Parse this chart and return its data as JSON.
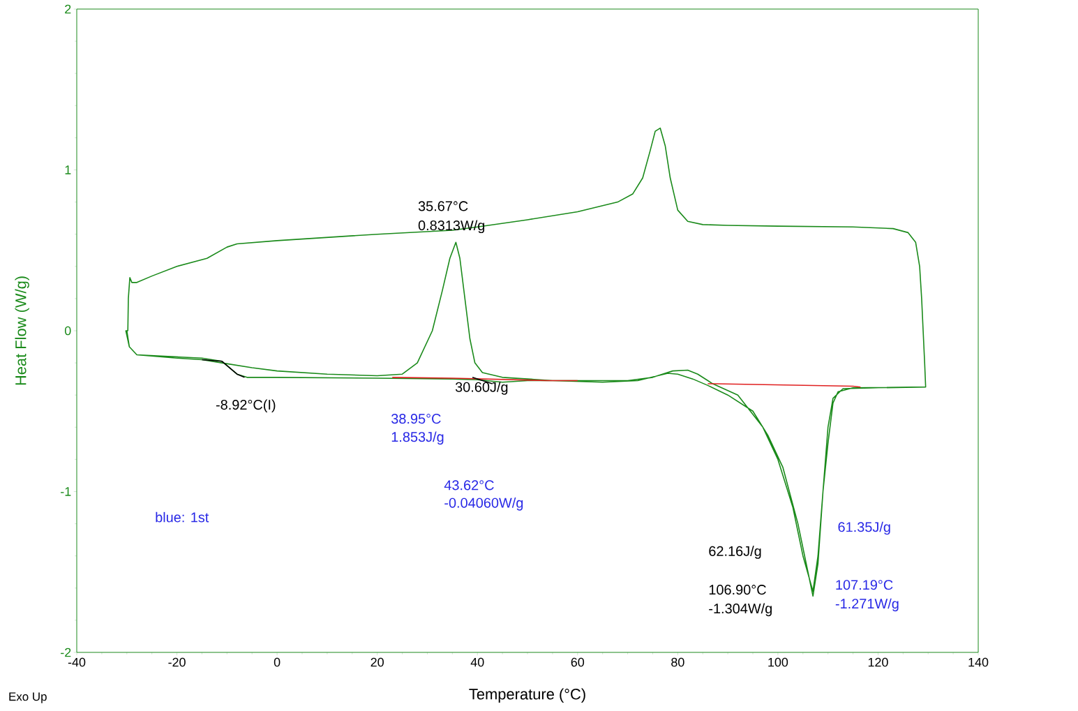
{
  "chart_data": {
    "type": "line",
    "xlabel": "Temperature (°C)",
    "ylabel": "Heat Flow (W/g)",
    "xlim": [
      -40,
      140
    ],
    "ylim": [
      -2,
      2
    ],
    "xticks": [
      -40,
      -20,
      0,
      20,
      40,
      60,
      80,
      100,
      120,
      140
    ],
    "yticks": [
      -2,
      -1,
      0,
      1,
      2
    ],
    "grid": false,
    "marker": "none",
    "line_style": "solid",
    "series": [
      {
        "color": "#1a8a1a",
        "x": [
          -30,
          -29.5,
          -28,
          -15,
          -11,
          -8,
          -6,
          0,
          20,
          35,
          40,
          45,
          50,
          70,
          75,
          79,
          82,
          84,
          87,
          92,
          97,
          100,
          103,
          105,
          107,
          108,
          109,
          110,
          111,
          112,
          115,
          129.5,
          129.5,
          129.3,
          129,
          128.7,
          128.3,
          127.5,
          126,
          123,
          115,
          100,
          90,
          85,
          82,
          80,
          78.5,
          77.5,
          76.5,
          75.5,
          74.5,
          73,
          71,
          68,
          60,
          50,
          40,
          35,
          20,
          0,
          -8,
          -10,
          -14,
          -20,
          -25,
          -28,
          -29,
          -29.4,
          -29.7,
          -29.8,
          -30.2,
          -29.5,
          -28,
          -20,
          -15,
          -11,
          -5,
          0,
          10,
          20,
          25,
          28,
          31,
          33,
          34.5,
          35.7,
          36.5,
          37.5,
          38.5,
          39.5,
          41,
          45,
          55,
          65,
          72,
          76,
          78,
          80,
          83,
          86,
          90,
          95,
          98,
          101,
          104,
          106,
          107,
          108,
          109,
          110,
          111,
          113,
          120,
          129.5
        ],
        "values": [
          0.0,
          -0.1,
          -0.15,
          -0.17,
          -0.19,
          -0.27,
          -0.29,
          -0.29,
          -0.295,
          -0.3,
          -0.305,
          -0.32,
          -0.31,
          -0.31,
          -0.29,
          -0.25,
          -0.245,
          -0.27,
          -0.33,
          -0.4,
          -0.6,
          -0.8,
          -1.1,
          -1.4,
          -1.62,
          -1.4,
          -1.0,
          -0.7,
          -0.45,
          -0.38,
          -0.355,
          -0.35,
          -0.35,
          -0.2,
          0,
          0.2,
          0.4,
          0.55,
          0.61,
          0.635,
          0.645,
          0.65,
          0.655,
          0.66,
          0.68,
          0.75,
          0.95,
          1.15,
          1.26,
          1.24,
          1.12,
          0.95,
          0.85,
          0.8,
          0.74,
          0.69,
          0.645,
          0.625,
          0.6,
          0.56,
          0.54,
          0.52,
          0.45,
          0.4,
          0.34,
          0.3,
          0.3,
          0.33,
          0.2,
          0.0,
          0.0,
          -0.1,
          -0.15,
          -0.17,
          -0.18,
          -0.2,
          -0.23,
          -0.25,
          -0.27,
          -0.28,
          -0.27,
          -0.2,
          0.0,
          0.25,
          0.45,
          0.55,
          0.45,
          0.2,
          -0.05,
          -0.2,
          -0.26,
          -0.29,
          -0.31,
          -0.32,
          -0.31,
          -0.28,
          -0.265,
          -0.27,
          -0.3,
          -0.34,
          -0.4,
          -0.5,
          -0.65,
          -0.85,
          -1.2,
          -1.5,
          -1.65,
          -1.45,
          -1.0,
          -0.6,
          -0.42,
          -0.36,
          -0.355,
          -0.35
        ]
      },
      {
        "color": "#e02020",
        "x": [
          23,
          35,
          54,
          60
        ],
        "values": [
          -0.29,
          -0.295,
          -0.31,
          -0.31
        ]
      },
      {
        "color": "#e02020",
        "x": [
          86,
          87.5,
          115,
          116.5
        ],
        "values": [
          -0.33,
          -0.33,
          -0.345,
          -0.35
        ]
      },
      {
        "color": "#000000",
        "x": [
          -15,
          -11,
          -8,
          -6.5
        ],
        "values": [
          -0.18,
          -0.19,
          -0.27,
          -0.29
        ]
      },
      {
        "color": "#000000",
        "x": [
          39,
          43
        ],
        "values": [
          -0.29,
          -0.33
        ]
      }
    ],
    "annotations": [
      "35.67°C",
      "0.8313W/g",
      "30.60J/g",
      "-8.92°C(I)",
      "38.95°C",
      "1.853J/g",
      "43.62°C",
      "-0.04060W/g",
      "blue: 1st",
      "62.16J/g",
      "106.90°C",
      "-1.304W/g",
      "61.35J/g",
      "107.19°C",
      "-1.271W/g",
      "Exo Up"
    ]
  }
}
